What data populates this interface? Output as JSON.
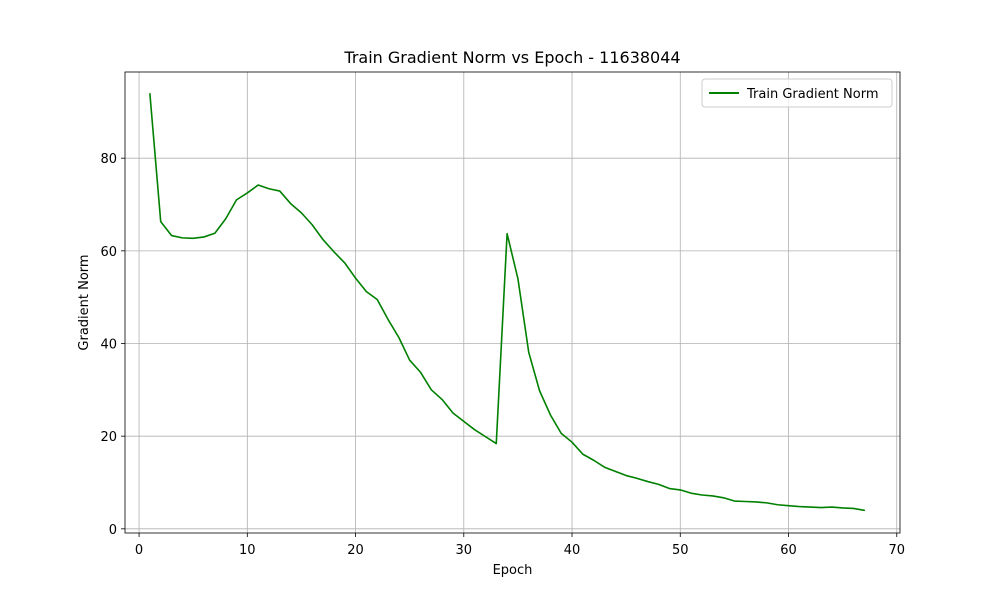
{
  "chart_data": {
    "type": "line",
    "title": "Train Gradient Norm vs Epoch - 11638044",
    "xlabel": "Epoch",
    "ylabel": "Gradient Norm",
    "xlim": [
      -1.3,
      70.3
    ],
    "ylim": [
      -0.9,
      98.6
    ],
    "xticks": [
      0,
      10,
      20,
      30,
      40,
      50,
      60,
      70
    ],
    "yticks": [
      0,
      20,
      40,
      60,
      80
    ],
    "grid": true,
    "legend_position": "top-right",
    "series": [
      {
        "name": "Train Gradient Norm",
        "color": "#008000",
        "x": [
          1,
          2,
          3,
          4,
          5,
          6,
          7,
          8,
          9,
          10,
          11,
          12,
          13,
          14,
          15,
          16,
          17,
          18,
          19,
          20,
          21,
          22,
          23,
          24,
          25,
          26,
          27,
          28,
          29,
          30,
          31,
          32,
          33,
          34,
          35,
          36,
          37,
          38,
          39,
          40,
          41,
          42,
          43,
          44,
          45,
          46,
          47,
          48,
          49,
          50,
          51,
          52,
          53,
          54,
          55,
          56,
          57,
          58,
          59,
          60,
          61,
          62,
          63,
          64,
          65,
          66,
          67
        ],
        "y": [
          93.9,
          66.3,
          63.3,
          62.8,
          62.7,
          63.0,
          63.8,
          66.9,
          71.0,
          72.5,
          74.2,
          73.4,
          72.9,
          70.2,
          68.2,
          65.6,
          62.4,
          59.8,
          57.4,
          54.1,
          51.2,
          49.5,
          45.2,
          41.3,
          36.4,
          33.8,
          30.0,
          27.9,
          25.0,
          23.2,
          21.4,
          19.9,
          18.4,
          63.7,
          54.0,
          38.1,
          29.8,
          24.6,
          20.6,
          18.7,
          16.1,
          14.8,
          13.3,
          12.4,
          11.5,
          10.9,
          10.2,
          9.6,
          8.7,
          8.4,
          7.7,
          7.3,
          7.1,
          6.7,
          6.0,
          5.9,
          5.8,
          5.6,
          5.2,
          5.0,
          4.8,
          4.7,
          4.6,
          4.7,
          4.5,
          4.4,
          4.0
        ]
      }
    ]
  }
}
